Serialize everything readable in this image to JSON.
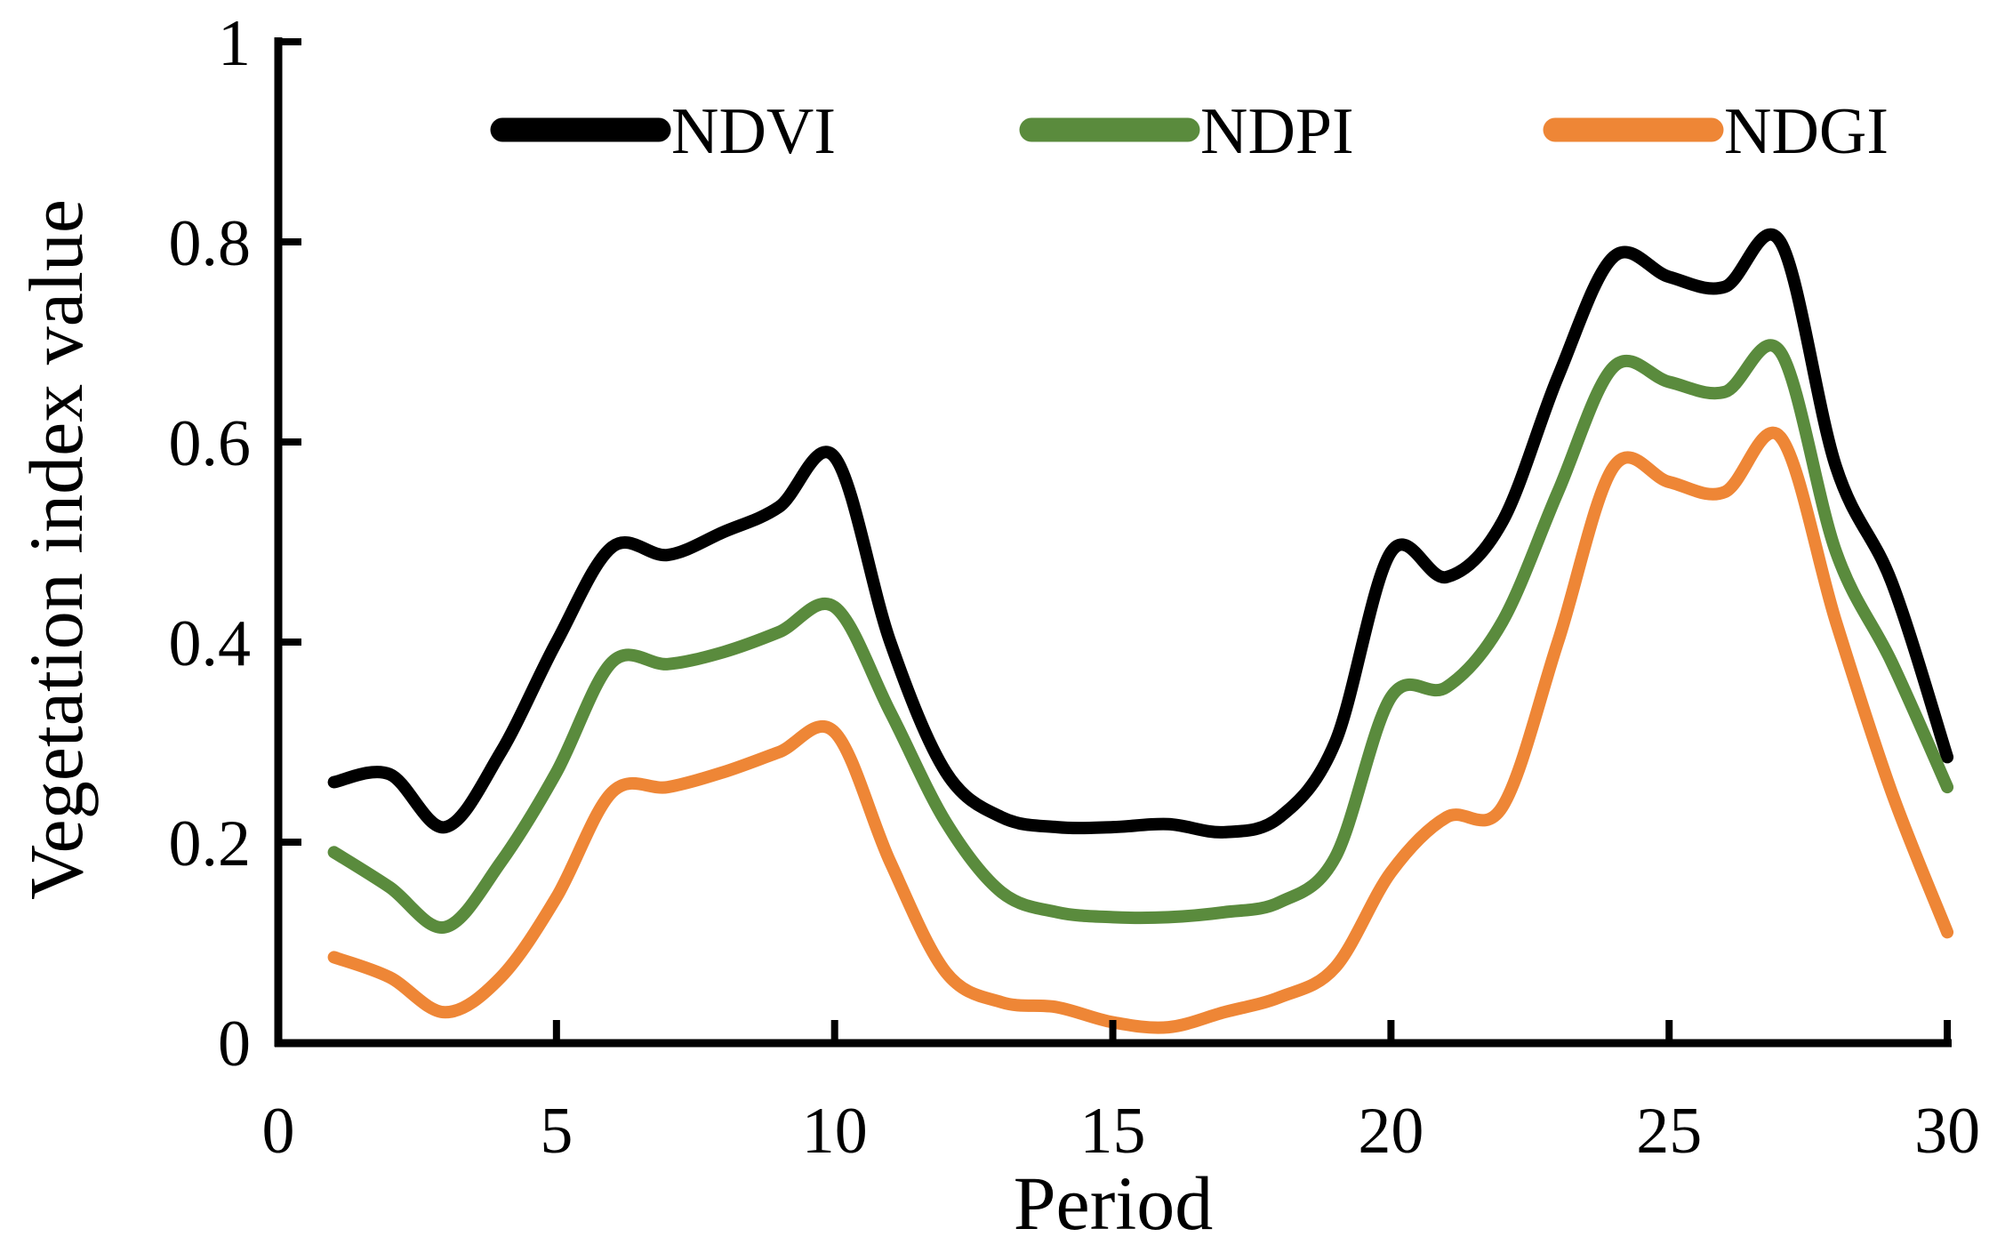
{
  "figure": {
    "xlabel": "Period",
    "ylabel": "Vegetation index value"
  },
  "chart_data": {
    "type": "line",
    "title": "",
    "xlabel": "Period",
    "ylabel": "Vegetation index value",
    "xlim": [
      0,
      30
    ],
    "ylim": [
      0,
      1
    ],
    "grid": false,
    "legend_position": "top-center",
    "x_tick_labels": [
      "0",
      "5",
      "10",
      "15",
      "20",
      "25",
      "30"
    ],
    "x_tick_values": [
      0,
      5,
      10,
      15,
      20,
      25,
      30
    ],
    "y_tick_labels": [
      "0",
      "0.2",
      "0.4",
      "0.6",
      "0.8",
      "1"
    ],
    "y_tick_values": [
      0,
      0.2,
      0.4,
      0.6,
      0.8,
      1
    ],
    "x": [
      1,
      2,
      3,
      4,
      5,
      6,
      7,
      8,
      9,
      10,
      11,
      12,
      13,
      14,
      15,
      16,
      17,
      18,
      19,
      20,
      21,
      22,
      23,
      24,
      25,
      26,
      27,
      28,
      29,
      30
    ],
    "series": [
      {
        "name": "NDVI",
        "color": "#000000",
        "values": [
          0.26,
          0.268,
          0.215,
          0.29,
          0.4,
          0.495,
          0.487,
          0.51,
          0.535,
          0.585,
          0.4,
          0.27,
          0.225,
          0.215,
          0.215,
          0.218,
          0.21,
          0.225,
          0.3,
          0.49,
          0.465,
          0.52,
          0.665,
          0.785,
          0.765,
          0.755,
          0.8,
          0.575,
          0.46,
          0.285
        ]
      },
      {
        "name": "NDPI",
        "color": "#5a8b3d",
        "values": [
          0.19,
          0.155,
          0.115,
          0.18,
          0.27,
          0.38,
          0.378,
          0.39,
          0.41,
          0.435,
          0.33,
          0.22,
          0.15,
          0.13,
          0.125,
          0.125,
          0.13,
          0.14,
          0.185,
          0.345,
          0.355,
          0.42,
          0.55,
          0.675,
          0.66,
          0.65,
          0.69,
          0.49,
          0.38,
          0.255
        ]
      },
      {
        "name": "NDGI",
        "color": "#ee8636",
        "values": [
          0.085,
          0.065,
          0.03,
          0.065,
          0.145,
          0.25,
          0.255,
          0.27,
          0.29,
          0.31,
          0.18,
          0.07,
          0.04,
          0.035,
          0.02,
          0.015,
          0.03,
          0.045,
          0.075,
          0.17,
          0.225,
          0.235,
          0.4,
          0.575,
          0.56,
          0.55,
          0.605,
          0.42,
          0.25,
          0.11
        ]
      }
    ]
  }
}
